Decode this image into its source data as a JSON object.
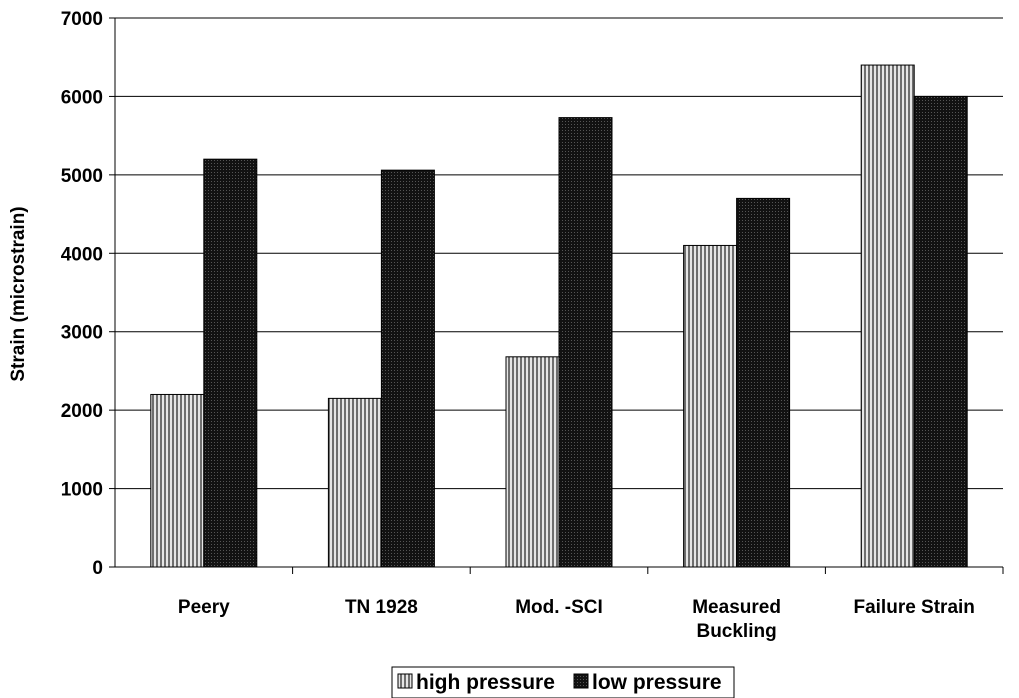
{
  "chart_data": {
    "type": "bar",
    "title": "",
    "xlabel": "",
    "ylabel": "Strain (microstrain)",
    "ylim": [
      0,
      7000
    ],
    "yticks": [
      0,
      1000,
      2000,
      3000,
      4000,
      5000,
      6000,
      7000
    ],
    "grid": true,
    "legend_position": "bottom",
    "categories": [
      [
        "Peery"
      ],
      [
        "TN 1928"
      ],
      [
        "Mod. -SCI"
      ],
      [
        "Measured",
        "Buckling"
      ],
      [
        "Failure Strain"
      ]
    ],
    "series": [
      {
        "name": "high pressure",
        "values": [
          2200,
          2150,
          2680,
          4100,
          6400
        ],
        "fill": "striped-gray",
        "color": "#9a9a9a"
      },
      {
        "name": "low pressure",
        "values": [
          5200,
          5060,
          5730,
          4700,
          6000
        ],
        "fill": "dotted-dark",
        "color": "#1c1c1c"
      }
    ]
  }
}
